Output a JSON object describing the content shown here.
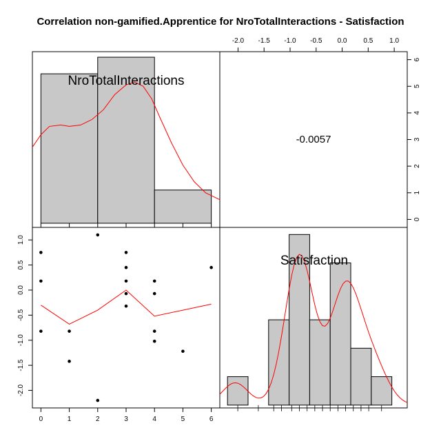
{
  "chart_data": [
    {
      "panel": "histogram-top-left",
      "type": "bar",
      "variable_label": "NroTotalInteractions",
      "bins": [
        [
          0,
          2
        ],
        [
          2,
          4
        ],
        [
          4,
          6
        ]
      ],
      "values": [
        5.4,
        6.0,
        1.2
      ],
      "xlim": [
        -0.3,
        6.3
      ],
      "x_ticks": [
        0,
        1,
        2,
        3,
        4,
        5,
        6
      ],
      "ylim": [
        -0.15,
        6.2
      ],
      "density_color": "#ff0000",
      "density": {
        "x": [
          -0.3,
          0,
          0.3,
          0.7,
          1,
          1.4,
          1.8,
          2.2,
          2.6,
          3,
          3.3,
          3.6,
          3.9,
          4.2,
          4.6,
          5,
          5.4,
          5.8,
          6.3
        ],
        "y": [
          2.75,
          3.2,
          3.5,
          3.55,
          3.5,
          3.55,
          3.75,
          4.1,
          4.65,
          5.0,
          5.1,
          4.95,
          4.5,
          3.8,
          2.9,
          2.1,
          1.5,
          1.1,
          0.85
        ]
      },
      "bar_color": "#c8c8c8"
    },
    {
      "panel": "correlation-top-right",
      "type": "table",
      "value": "-0.0057",
      "x_ticks": [
        "-2.0",
        "-1.5",
        "-1.0",
        "-0.5",
        "0.0",
        "0.5",
        "1.0"
      ],
      "y_ticks": [
        "0",
        "1",
        "2",
        "3",
        "4",
        "5",
        "6"
      ]
    },
    {
      "panel": "scatter-bottom-left",
      "type": "scatter",
      "points": [
        {
          "x": 0,
          "y": 0.75
        },
        {
          "x": 0,
          "y": 0.18
        },
        {
          "x": 0,
          "y": -0.82
        },
        {
          "x": 1,
          "y": -0.82
        },
        {
          "x": 1,
          "y": -1.42
        },
        {
          "x": 2,
          "y": 1.1
        },
        {
          "x": 2,
          "y": -2.2
        },
        {
          "x": 3,
          "y": 0.75
        },
        {
          "x": 3,
          "y": 0.45
        },
        {
          "x": 3,
          "y": 0.18
        },
        {
          "x": 3,
          "y": -0.07
        },
        {
          "x": 3,
          "y": -0.32
        },
        {
          "x": 4,
          "y": 0.18
        },
        {
          "x": 4,
          "y": -0.07
        },
        {
          "x": 4,
          "y": -0.82
        },
        {
          "x": 4,
          "y": -1.02
        },
        {
          "x": 5,
          "y": -1.22
        },
        {
          "x": 6,
          "y": 0.45
        }
      ],
      "smooth_line": {
        "x": [
          0,
          1,
          2,
          3,
          4,
          5,
          6
        ],
        "y": [
          -0.3,
          -0.68,
          -0.4,
          0.0,
          -0.52,
          -0.4,
          -0.28
        ]
      },
      "xlim": [
        -0.3,
        6.3
      ],
      "ylim": [
        -2.35,
        1.25
      ],
      "x_ticks": [
        "0",
        "1",
        "2",
        "3",
        "4",
        "5",
        "6"
      ],
      "y_ticks": [
        "-2.0",
        "-1.5",
        "-1.0",
        "-0.5",
        "0.0",
        "0.5",
        "1.0"
      ],
      "line_color": "#ff0000"
    },
    {
      "panel": "histogram-bottom-right",
      "type": "bar",
      "variable_label": "Satisfaction",
      "bins": [
        [
          -2.4,
          -2.0
        ],
        [
          -2.0,
          -1.6
        ],
        [
          -1.6,
          -1.2
        ],
        [
          -1.2,
          -0.8
        ],
        [
          -0.8,
          -0.4
        ],
        [
          -0.4,
          0.0
        ],
        [
          0.0,
          0.4
        ],
        [
          0.4,
          0.8
        ]
      ],
      "values": [
        1,
        0,
        3,
        6,
        3,
        5,
        2,
        1
      ],
      "ylim": [
        -0.1,
        6.25
      ],
      "density_color": "#ff0000",
      "bar_color": "#c8c8c8"
    }
  ],
  "title": "Correlation non-gamified.Apprentice for NroTotalInteractions - Satisfaction"
}
